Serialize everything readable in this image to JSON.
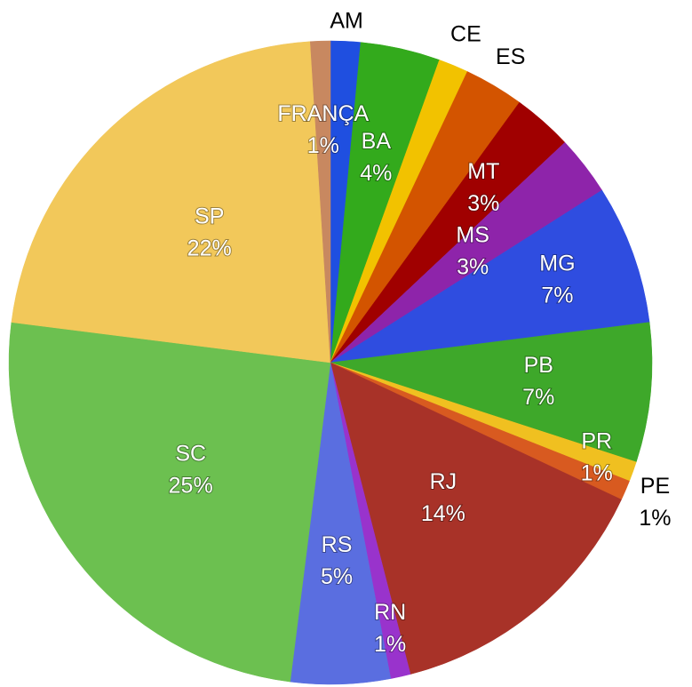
{
  "chart_data": {
    "type": "pie",
    "categories": [
      "AM",
      "BA",
      "CE",
      "ES",
      "MT",
      "MS",
      "MG",
      "PB",
      "PR",
      "PE",
      "RJ",
      "RN",
      "RS",
      "SC",
      "SP",
      "FRANÇA"
    ],
    "values": [
      1.5,
      4,
      1.5,
      3,
      3,
      3,
      7,
      7,
      1,
      1,
      14,
      1,
      5,
      25,
      22,
      1
    ],
    "value_labels": [
      null,
      "4%",
      null,
      null,
      "3%",
      "3%",
      "7%",
      "7%",
      "1%",
      "1%",
      "14%",
      "1%",
      "5%",
      "25%",
      "22%",
      "1%"
    ],
    "colors": [
      "#1f4fe0",
      "#33aa1c",
      "#f2c200",
      "#d35400",
      "#a00000",
      "#8e24aa",
      "#2f4de0",
      "#3ea82a",
      "#f0c020",
      "#d85a20",
      "#a83228",
      "#9933cc",
      "#5a6ee0",
      "#6cc050",
      "#f2c85a",
      "#c88860"
    ]
  }
}
